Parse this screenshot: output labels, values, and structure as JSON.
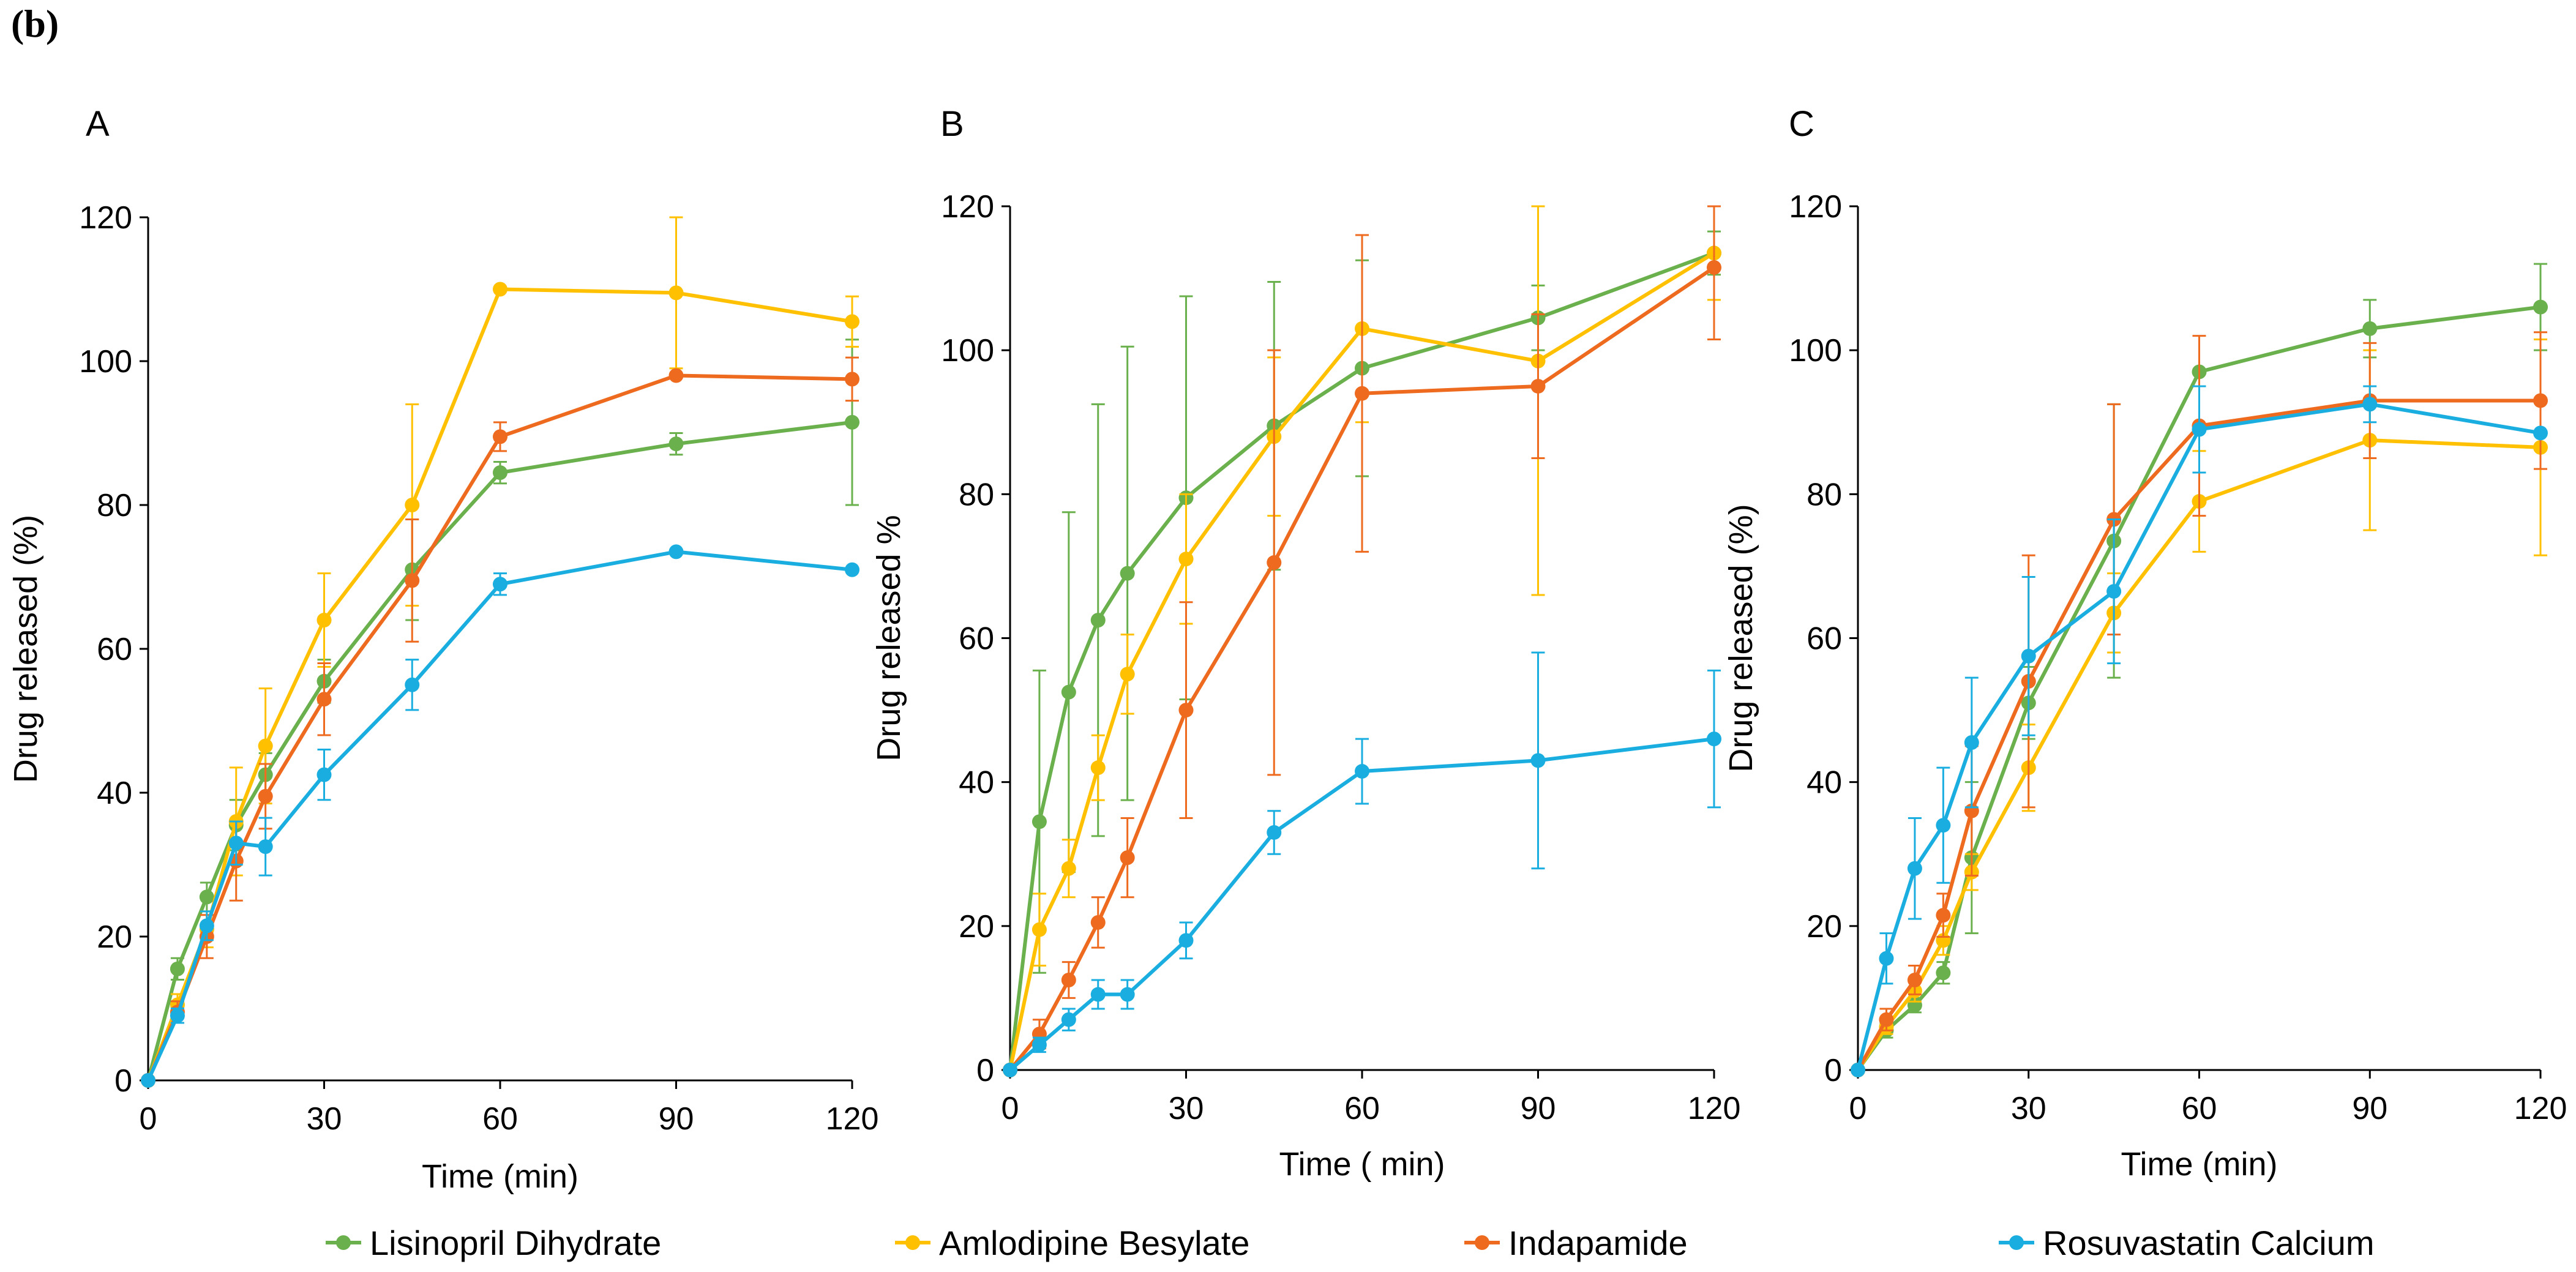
{
  "figure_label": "(b)",
  "legend": [
    {
      "name": "Lisinopril Dihydrate",
      "color": "#6ab04c"
    },
    {
      "name": "Amlodipine Besylate",
      "color": "#ffc000"
    },
    {
      "name": "Indapamide",
      "color": "#ed6a1f"
    },
    {
      "name": "Rosuvastatin Calcium",
      "color": "#1aaee0"
    }
  ],
  "chart_data": [
    {
      "type": "line",
      "panel": "A",
      "xlabel": "Time (min)",
      "ylabel": "Drug released (%)",
      "xlim": [
        0,
        120
      ],
      "ylim": [
        0,
        120
      ],
      "xticks": [
        0,
        30,
        60,
        90,
        120
      ],
      "yticks": [
        0,
        20,
        40,
        60,
        80,
        100,
        120
      ],
      "x": [
        0,
        5,
        10,
        15,
        20,
        30,
        45,
        60,
        90,
        120
      ],
      "series": [
        {
          "name": "Lisinopril Dihydrate",
          "color": "#6ab04c",
          "values": [
            0,
            15.5,
            25.5,
            35.5,
            42.5,
            55.5,
            71,
            84.5,
            88.5,
            91.5
          ],
          "errors": [
            0,
            1.5,
            2,
            3.5,
            3,
            3,
            7,
            1.5,
            1.5,
            11.5
          ]
        },
        {
          "name": "Amlodipine Besylate",
          "color": "#ffc000",
          "values": [
            0,
            10.5,
            21,
            36,
            46.5,
            64,
            80,
            110,
            109.5,
            105.5
          ],
          "errors": [
            0,
            1.5,
            2.5,
            7.5,
            8,
            6.5,
            14,
            0,
            10.5,
            3.5
          ]
        },
        {
          "name": "Indapamide",
          "color": "#ed6a1f",
          "values": [
            0,
            9.5,
            20,
            30.5,
            39.5,
            53,
            69.5,
            89.5,
            98,
            97.5
          ],
          "errors": [
            0,
            1.5,
            3,
            5.5,
            4.5,
            5,
            8.5,
            2,
            0,
            3
          ]
        },
        {
          "name": "Rosuvastatin Calcium",
          "color": "#1aaee0",
          "values": [
            0,
            9,
            21.5,
            33,
            32.5,
            42.5,
            55,
            69,
            73.5,
            71
          ],
          "errors": [
            0,
            1,
            2,
            3,
            4,
            3.5,
            3.5,
            1.5,
            0,
            0
          ]
        }
      ]
    },
    {
      "type": "line",
      "panel": "B",
      "xlabel": "Time ( min)",
      "ylabel": "Drug released %",
      "xlim": [
        0,
        120
      ],
      "ylim": [
        0,
        120
      ],
      "xticks": [
        0,
        30,
        60,
        90,
        120
      ],
      "yticks": [
        0,
        20,
        40,
        60,
        80,
        100,
        120
      ],
      "x": [
        0,
        5,
        10,
        15,
        20,
        30,
        45,
        60,
        90,
        120
      ],
      "series": [
        {
          "name": "Lisinopril Dihydrate",
          "color": "#6ab04c",
          "values": [
            0,
            34.5,
            52.5,
            62.5,
            69,
            79.5,
            89.5,
            97.5,
            104.5,
            113.5
          ],
          "errors": [
            0,
            21,
            25,
            30,
            31.5,
            28,
            20,
            15,
            4.5,
            3
          ]
        },
        {
          "name": "Amlodipine Besylate",
          "color": "#ffc000",
          "values": [
            0,
            19.5,
            28,
            42,
            55,
            71,
            88,
            103,
            98.5,
            113.5
          ],
          "errors": [
            0,
            5,
            4,
            4.5,
            5.5,
            9,
            11,
            13,
            32.5,
            6.5
          ]
        },
        {
          "name": "Indapamide",
          "color": "#ed6a1f",
          "values": [
            0,
            5,
            12.5,
            20.5,
            29.5,
            50,
            70.5,
            94,
            95,
            111.5
          ],
          "errors": [
            0,
            2,
            2.5,
            3.5,
            5.5,
            15,
            29.5,
            22,
            10,
            10
          ]
        },
        {
          "name": "Rosuvastatin Calcium",
          "color": "#1aaee0",
          "values": [
            0,
            3.5,
            7,
            10.5,
            10.5,
            18,
            33,
            41.5,
            43,
            46
          ],
          "errors": [
            0,
            1,
            1.5,
            2,
            2,
            2.5,
            3,
            4.5,
            15,
            9.5
          ]
        }
      ]
    },
    {
      "type": "line",
      "panel": "C",
      "xlabel": "Time (min)",
      "ylabel": "Drug released (%)",
      "xlim": [
        0,
        120
      ],
      "ylim": [
        0,
        120
      ],
      "xticks": [
        0,
        30,
        60,
        90,
        120
      ],
      "yticks": [
        0,
        20,
        40,
        60,
        80,
        100,
        120
      ],
      "x": [
        0,
        5,
        10,
        15,
        20,
        30,
        45,
        60,
        90,
        120
      ],
      "series": [
        {
          "name": "Lisinopril Dihydrate",
          "color": "#6ab04c",
          "values": [
            0,
            5.5,
            9,
            13.5,
            29.5,
            51,
            73.5,
            97,
            103,
            106
          ],
          "errors": [
            0,
            1,
            1,
            1.5,
            10.5,
            5,
            19,
            0,
            4,
            6
          ]
        },
        {
          "name": "Amlodipine Besylate",
          "color": "#ffc000",
          "values": [
            0,
            6,
            11,
            18,
            27.5,
            42,
            63.5,
            79,
            87.5,
            86.5
          ],
          "errors": [
            0,
            1,
            1.5,
            2,
            2.5,
            6,
            5.5,
            7,
            12.5,
            15
          ]
        },
        {
          "name": "Indapamide",
          "color": "#ed6a1f",
          "values": [
            0,
            7,
            12.5,
            21.5,
            36,
            54,
            76.5,
            89.5,
            93,
            93
          ],
          "errors": [
            0,
            1.5,
            2,
            3,
            9,
            17.5,
            16,
            12.5,
            8,
            9.5
          ]
        },
        {
          "name": "Rosuvastatin Calcium",
          "color": "#1aaee0",
          "values": [
            0,
            15.5,
            28,
            34,
            45.5,
            57.5,
            66.5,
            89,
            92.5,
            88.5
          ],
          "errors": [
            0,
            3.5,
            7,
            8,
            9,
            11,
            10,
            6,
            2.5,
            0
          ]
        }
      ]
    }
  ]
}
